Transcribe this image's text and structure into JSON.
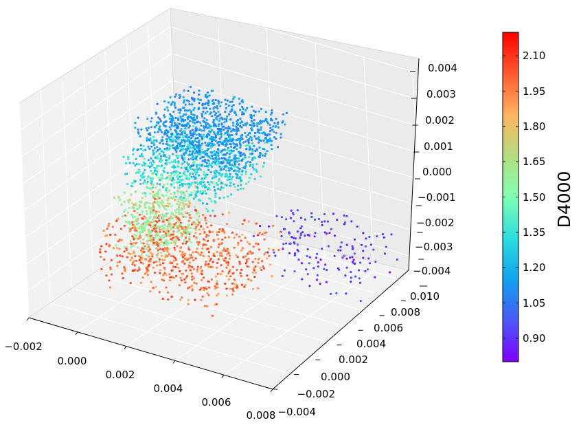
{
  "chart_data": {
    "type": "scatter",
    "projection": "3d",
    "title": "",
    "xlabel": "",
    "ylabel": "",
    "zlabel": "",
    "xlim": [
      -0.002,
      0.008
    ],
    "ylim": [
      -0.004,
      0.01
    ],
    "zlim": [
      -0.004,
      0.004
    ],
    "x_ticks": [
      "−0.002",
      "0.000",
      "0.002",
      "0.004",
      "0.006",
      "0.008"
    ],
    "y_ticks": [
      "−0.004",
      "−0.002",
      "0.000",
      "0.002",
      "0.004",
      "0.006",
      "0.008",
      "0.010"
    ],
    "z_ticks": [
      "−0.004",
      "−0.003",
      "−0.002",
      "−0.001",
      "0.000",
      "0.001",
      "0.002",
      "0.003",
      "0.004"
    ],
    "grid": true,
    "colormap": "rainbow",
    "colorbar": {
      "label": "D4000",
      "range": [
        0.8,
        2.2
      ],
      "ticks": [
        "0.90",
        "1.05",
        "1.20",
        "1.35",
        "1.50",
        "1.65",
        "1.80",
        "1.95",
        "2.10"
      ]
    },
    "series": [
      {
        "description": "clusters",
        "clusters": [
          {
            "x": [
              -0.0006,
              0.0035
            ],
            "y": [
              0.003,
              0.0085
            ],
            "z": [
              0.0005,
              0.0018
            ],
            "d4000": [
              1.05,
              1.2
            ],
            "n": 900
          },
          {
            "x": [
              -0.0006,
              0.003
            ],
            "y": [
              0.002,
              0.0075
            ],
            "z": [
              -0.0005,
              0.0008
            ],
            "d4000": [
              1.2,
              1.45
            ],
            "n": 700
          },
          {
            "x": [
              -0.0006,
              0.0015
            ],
            "y": [
              0.001,
              0.005
            ],
            "z": [
              -0.0025,
              -0.0005
            ],
            "d4000": [
              1.45,
              1.75
            ],
            "n": 450
          },
          {
            "x": [
              -0.0006,
              0.0045
            ],
            "y": [
              -0.001,
              0.005
            ],
            "z": [
              -0.0032,
              -0.0012
            ],
            "d4000": [
              1.85,
              2.1
            ],
            "n": 700
          },
          {
            "x": [
              0.003,
              0.0075
            ],
            "y": [
              0.005,
              0.0095
            ],
            "z": [
              -0.0035,
              -0.0015
            ],
            "d4000": [
              0.85,
              1.0
            ],
            "n": 160
          }
        ]
      }
    ]
  }
}
